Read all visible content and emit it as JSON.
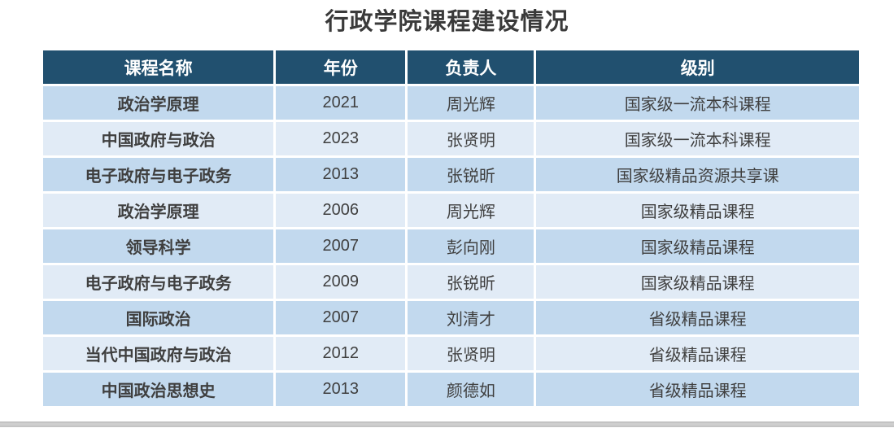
{
  "page": {
    "title": "行政学院课程建设情况"
  },
  "table": {
    "columns": [
      {
        "key": "course-name",
        "label": "课程名称"
      },
      {
        "key": "year",
        "label": "年份"
      },
      {
        "key": "leader",
        "label": "负责人"
      },
      {
        "key": "level",
        "label": "级别"
      }
    ],
    "rows": [
      [
        "政治学原理",
        "2021",
        "周光辉",
        "国家级一流本科课程"
      ],
      [
        "中国政府与政治",
        "2023",
        "张贤明",
        "国家级一流本科课程"
      ],
      [
        "电子政府与电子政务",
        "2013",
        "张锐昕",
        "国家级精品资源共享课"
      ],
      [
        "政治学原理",
        "2006",
        "周光辉",
        "国家级精品课程"
      ],
      [
        "领导科学",
        "2007",
        "彭向刚",
        "国家级精品课程"
      ],
      [
        "电子政府与电子政务",
        "2009",
        "张锐昕",
        "国家级精品课程"
      ],
      [
        "国际政治",
        "2007",
        "刘清才",
        "省级精品课程"
      ],
      [
        "当代中国政府与政治",
        "2012",
        "张贤明",
        "省级精品课程"
      ],
      [
        "中国政治思想史",
        "2013",
        "颜德如",
        "省级精品课程"
      ]
    ]
  },
  "colors": {
    "header_bg": "#21506f",
    "header_text": "#ffffff",
    "row_odd_bg": "#c2d9ee",
    "row_even_bg": "#e1ebf6",
    "cell_text": "#3f3f3f",
    "title_text": "#3a3a3a",
    "bottom_bar": "#c7c7c7"
  }
}
